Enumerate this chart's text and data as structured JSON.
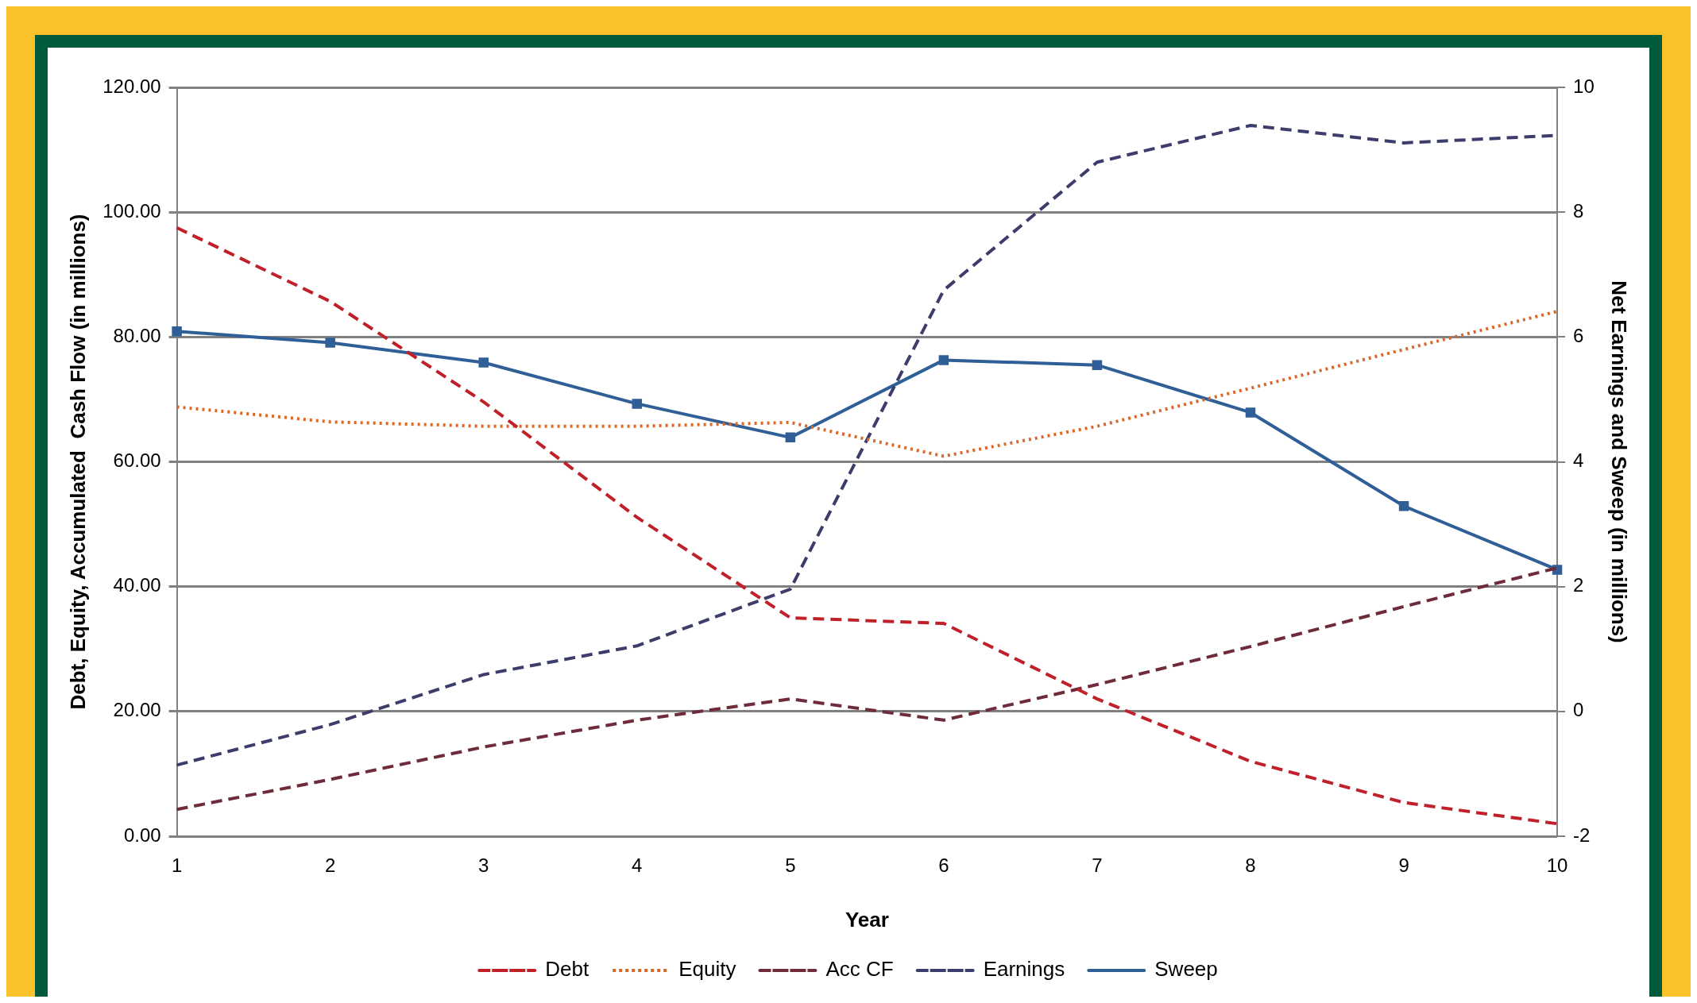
{
  "chart_data": {
    "type": "line",
    "xlabel": "Year",
    "ylabel": "Debt, Equity, Accumulated  Cash Flow (in millions)",
    "y2label": "Net Earnings and Sweep (in millions)",
    "categories": [
      "1",
      "2",
      "3",
      "4",
      "5",
      "6",
      "7",
      "8",
      "9",
      "10"
    ],
    "series": [
      {
        "name": "Debt",
        "color": "#c0202a",
        "line_style": "dashed",
        "marker": "none",
        "values": [
          97.5,
          85.7,
          69.6,
          51.1,
          35.0,
          34.1,
          22.0,
          12.0,
          5.4,
          2.0
        ]
      },
      {
        "name": "Equity",
        "color": "#d9682a",
        "line_style": "dotted",
        "marker": "none",
        "values": [
          68.8,
          66.4,
          65.7,
          65.7,
          66.3,
          60.9,
          65.7,
          71.8,
          78.0,
          84.1
        ]
      },
      {
        "name": "Acc CF",
        "color": "#6e2c3a",
        "line_style": "dashed",
        "marker": "none",
        "values": [
          4.3,
          9.1,
          14.3,
          18.6,
          22.0,
          18.6,
          24.3,
          30.4,
          36.8,
          43.0
        ]
      },
      {
        "name": "Earnings",
        "color": "#3d3d6b",
        "line_style": "dashed",
        "marker": "none",
        "axis": "y2",
        "values": [
          -0.86,
          -0.21,
          0.59,
          1.05,
          1.96,
          6.75,
          8.8,
          9.39,
          9.11,
          9.23
        ]
      },
      {
        "name": "Sweep",
        "color": "#2f5f96",
        "line_style": "solid",
        "marker": "square",
        "axis": "y2",
        "values": [
          6.09,
          5.91,
          5.59,
          4.93,
          4.39,
          5.63,
          5.55,
          4.79,
          3.29,
          2.27
        ]
      }
    ],
    "ylim": [
      0,
      120
    ],
    "yticks": [
      {
        "value": 0,
        "label": "0.00"
      },
      {
        "value": 20,
        "label": "20.00"
      },
      {
        "value": 40,
        "label": "40.00"
      },
      {
        "value": 60,
        "label": "60.00"
      },
      {
        "value": 80,
        "label": "80.00"
      },
      {
        "value": 100,
        "label": "100.00"
      },
      {
        "value": 120,
        "label": "120.00"
      }
    ],
    "y2lim": [
      -2,
      10
    ],
    "y2ticks": [
      -2,
      0,
      2,
      4,
      6,
      8,
      10
    ],
    "grid": "y",
    "legend": "bottom"
  }
}
